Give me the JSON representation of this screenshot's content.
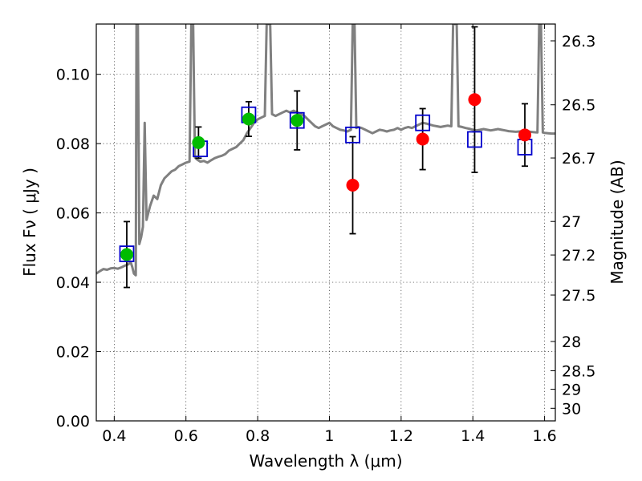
{
  "chart_data": {
    "type": "scatter",
    "xlabel": "Wavelength  λ (μm)",
    "ylabel": "Flux  Fν  ( μJy )",
    "ylabel_right": "Magnitude (AB)",
    "xlim": [
      0.35,
      1.63
    ],
    "ylim": [
      0.0,
      0.1145
    ],
    "x_ticks": [
      0.4,
      0.6,
      0.8,
      1.0,
      1.2,
      1.4,
      1.6
    ],
    "x_tick_labels": [
      "0.4",
      "0.6",
      "0.8",
      "1",
      "1.2",
      "1.4",
      "1.6"
    ],
    "y_ticks": [
      0.0,
      0.02,
      0.04,
      0.06,
      0.08,
      0.1
    ],
    "y_tick_labels": [
      "0.00",
      "0.02",
      "0.04",
      "0.06",
      "0.08",
      "0.10"
    ],
    "right_ticks": [
      {
        "label": "26.3",
        "mag": 26.3
      },
      {
        "label": "26.5",
        "mag": 26.5
      },
      {
        "label": "26.7",
        "mag": 26.7
      },
      {
        "label": "27",
        "mag": 27.0
      },
      {
        "label": "27.2",
        "mag": 27.2
      },
      {
        "label": "27.5",
        "mag": 27.5
      },
      {
        "label": "28",
        "mag": 28.0
      },
      {
        "label": "28.5",
        "mag": 28.5
      },
      {
        "label": "29",
        "mag": 29.0
      },
      {
        "label": "30",
        "mag": 30.0
      }
    ],
    "grid": true,
    "colors": {
      "model": "#808080",
      "green": "#00bb00",
      "red": "#ff0000",
      "square": "#0000cc",
      "errorbar": "#000000"
    },
    "model_spectrum": [
      [
        0.35,
        0.0425
      ],
      [
        0.36,
        0.0432
      ],
      [
        0.37,
        0.0438
      ],
      [
        0.38,
        0.0436
      ],
      [
        0.39,
        0.044
      ],
      [
        0.4,
        0.0441
      ],
      [
        0.41,
        0.0439
      ],
      [
        0.42,
        0.0443
      ],
      [
        0.43,
        0.0448
      ],
      [
        0.44,
        0.0452
      ],
      [
        0.445,
        0.046
      ],
      [
        0.45,
        0.0445
      ],
      [
        0.455,
        0.0425
      ],
      [
        0.46,
        0.042
      ],
      [
        0.462,
        0.1145
      ],
      [
        0.466,
        0.1145
      ],
      [
        0.47,
        0.051
      ],
      [
        0.475,
        0.053
      ],
      [
        0.48,
        0.056
      ],
      [
        0.485,
        0.086
      ],
      [
        0.49,
        0.058
      ],
      [
        0.5,
        0.062
      ],
      [
        0.51,
        0.065
      ],
      [
        0.52,
        0.064
      ],
      [
        0.53,
        0.068
      ],
      [
        0.54,
        0.07
      ],
      [
        0.55,
        0.071
      ],
      [
        0.56,
        0.072
      ],
      [
        0.57,
        0.0725
      ],
      [
        0.58,
        0.0735
      ],
      [
        0.59,
        0.074
      ],
      [
        0.6,
        0.0745
      ],
      [
        0.61,
        0.0748
      ],
      [
        0.615,
        0.1145
      ],
      [
        0.62,
        0.1145
      ],
      [
        0.625,
        0.076
      ],
      [
        0.63,
        0.0755
      ],
      [
        0.64,
        0.0748
      ],
      [
        0.65,
        0.075
      ],
      [
        0.66,
        0.0745
      ],
      [
        0.67,
        0.0752
      ],
      [
        0.68,
        0.0758
      ],
      [
        0.69,
        0.0762
      ],
      [
        0.7,
        0.0765
      ],
      [
        0.71,
        0.077
      ],
      [
        0.72,
        0.078
      ],
      [
        0.73,
        0.0785
      ],
      [
        0.74,
        0.079
      ],
      [
        0.75,
        0.08
      ],
      [
        0.76,
        0.081
      ],
      [
        0.77,
        0.083
      ],
      [
        0.78,
        0.0845
      ],
      [
        0.79,
        0.086
      ],
      [
        0.8,
        0.087
      ],
      [
        0.81,
        0.0875
      ],
      [
        0.82,
        0.088
      ],
      [
        0.825,
        0.1145
      ],
      [
        0.835,
        0.1145
      ],
      [
        0.84,
        0.0885
      ],
      [
        0.85,
        0.088
      ],
      [
        0.86,
        0.0885
      ],
      [
        0.87,
        0.089
      ],
      [
        0.88,
        0.0895
      ],
      [
        0.89,
        0.089
      ],
      [
        0.9,
        0.0895
      ],
      [
        0.91,
        0.089
      ],
      [
        0.92,
        0.0885
      ],
      [
        0.93,
        0.088
      ],
      [
        0.94,
        0.087
      ],
      [
        0.95,
        0.086
      ],
      [
        0.96,
        0.085
      ],
      [
        0.97,
        0.0845
      ],
      [
        0.98,
        0.085
      ],
      [
        0.99,
        0.0855
      ],
      [
        1.0,
        0.086
      ],
      [
        1.01,
        0.085
      ],
      [
        1.02,
        0.0845
      ],
      [
        1.03,
        0.084
      ],
      [
        1.04,
        0.0838
      ],
      [
        1.05,
        0.0835
      ],
      [
        1.06,
        0.084
      ],
      [
        1.065,
        0.1145
      ],
      [
        1.07,
        0.1145
      ],
      [
        1.075,
        0.0845
      ],
      [
        1.08,
        0.0848
      ],
      [
        1.09,
        0.0845
      ],
      [
        1.1,
        0.084
      ],
      [
        1.11,
        0.0835
      ],
      [
        1.12,
        0.083
      ],
      [
        1.13,
        0.0835
      ],
      [
        1.14,
        0.084
      ],
      [
        1.15,
        0.0838
      ],
      [
        1.16,
        0.0835
      ],
      [
        1.17,
        0.0838
      ],
      [
        1.18,
        0.084
      ],
      [
        1.19,
        0.0845
      ],
      [
        1.2,
        0.084
      ],
      [
        1.21,
        0.0845
      ],
      [
        1.22,
        0.0848
      ],
      [
        1.23,
        0.0845
      ],
      [
        1.24,
        0.085
      ],
      [
        1.25,
        0.0855
      ],
      [
        1.26,
        0.086
      ],
      [
        1.27,
        0.0858
      ],
      [
        1.28,
        0.0855
      ],
      [
        1.29,
        0.0852
      ],
      [
        1.3,
        0.085
      ],
      [
        1.31,
        0.0848
      ],
      [
        1.32,
        0.085
      ],
      [
        1.33,
        0.0852
      ],
      [
        1.34,
        0.085
      ],
      [
        1.345,
        0.1145
      ],
      [
        1.355,
        0.1145
      ],
      [
        1.36,
        0.085
      ],
      [
        1.37,
        0.0848
      ],
      [
        1.38,
        0.0845
      ],
      [
        1.39,
        0.0843
      ],
      [
        1.4,
        0.084
      ],
      [
        1.41,
        0.0838
      ],
      [
        1.42,
        0.084
      ],
      [
        1.43,
        0.0842
      ],
      [
        1.44,
        0.084
      ],
      [
        1.45,
        0.0838
      ],
      [
        1.46,
        0.084
      ],
      [
        1.47,
        0.0842
      ],
      [
        1.48,
        0.084
      ],
      [
        1.49,
        0.0838
      ],
      [
        1.5,
        0.0836
      ],
      [
        1.51,
        0.0835
      ],
      [
        1.52,
        0.0834
      ],
      [
        1.53,
        0.0835
      ],
      [
        1.54,
        0.0836
      ],
      [
        1.55,
        0.0835
      ],
      [
        1.56,
        0.0834
      ],
      [
        1.57,
        0.0833
      ],
      [
        1.58,
        0.0832
      ],
      [
        1.585,
        0.1145
      ],
      [
        1.59,
        0.1145
      ],
      [
        1.595,
        0.0832
      ],
      [
        1.6,
        0.0831
      ],
      [
        1.61,
        0.083
      ],
      [
        1.62,
        0.0829
      ],
      [
        1.63,
        0.0829
      ]
    ],
    "model_points": [
      {
        "x": 0.435,
        "y": 0.0482
      },
      {
        "x": 0.64,
        "y": 0.0785
      },
      {
        "x": 0.775,
        "y": 0.0883
      },
      {
        "x": 0.91,
        "y": 0.0867
      },
      {
        "x": 1.065,
        "y": 0.0825
      },
      {
        "x": 1.26,
        "y": 0.086
      },
      {
        "x": 1.405,
        "y": 0.0812
      },
      {
        "x": 1.545,
        "y": 0.079
      }
    ],
    "observed": [
      {
        "x": 0.435,
        "y": 0.048,
        "yerr": 0.0095,
        "color": "green"
      },
      {
        "x": 0.635,
        "y": 0.0803,
        "yerr": 0.0045,
        "color": "green"
      },
      {
        "x": 0.775,
        "y": 0.0871,
        "yerr": 0.005,
        "color": "green"
      },
      {
        "x": 0.91,
        "y": 0.0867,
        "yerr": 0.0085,
        "color": "green"
      },
      {
        "x": 1.065,
        "y": 0.068,
        "yerr": 0.014,
        "color": "red"
      },
      {
        "x": 1.26,
        "y": 0.0813,
        "yerr": 0.0088,
        "color": "red"
      },
      {
        "x": 1.405,
        "y": 0.0927,
        "yerr": 0.021,
        "color": "red"
      },
      {
        "x": 1.545,
        "y": 0.0825,
        "yerr": 0.009,
        "color": "red"
      }
    ]
  }
}
